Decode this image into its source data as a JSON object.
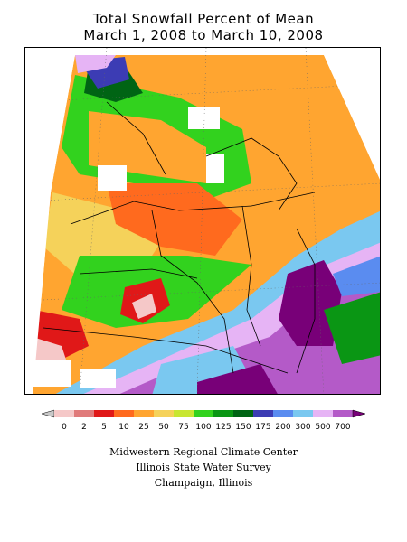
{
  "title_line1": "Total Snowfall Percent of Mean",
  "title_line2": "March 1, 2008 to March 10, 2008",
  "legend": {
    "ticks": [
      "0",
      "2",
      "5",
      "10",
      "25",
      "50",
      "75",
      "100",
      "125",
      "150",
      "175",
      "200",
      "300",
      "500",
      "700"
    ],
    "colors": [
      "#c8c8c8",
      "#f5c8c8",
      "#e07a7a",
      "#e01818",
      "#ff6a1e",
      "#ffa530",
      "#f5d25a",
      "#c8e632",
      "#32d21e",
      "#0a9614",
      "#006414",
      "#3c3cb4",
      "#5a8cf0",
      "#7ac8f0",
      "#e6b4f5",
      "#b45ac8",
      "#780078"
    ]
  },
  "credits": {
    "line1": "Midwestern Regional Climate Center",
    "line2": "Illinois State Water Survey",
    "line3": "Champaign, Illinois"
  }
}
